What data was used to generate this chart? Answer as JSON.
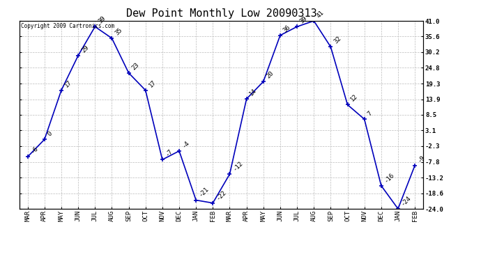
{
  "title": "Dew Point Monthly Low 20090313",
  "months": [
    "MAR",
    "APR",
    "MAY",
    "JUN",
    "JUL",
    "AUG",
    "SEP",
    "OCT",
    "NOV",
    "DEC",
    "JAN",
    "FEB",
    "MAR",
    "APR",
    "MAY",
    "JUN",
    "JUL",
    "AUG",
    "SEP",
    "OCT",
    "NOV",
    "DEC",
    "JAN",
    "FEB"
  ],
  "values": [
    -6,
    0,
    17,
    29,
    39,
    35,
    23,
    17,
    -7,
    -4,
    -21,
    -22,
    -12,
    14,
    20,
    36,
    39,
    41,
    32,
    12,
    7,
    -16,
    -24,
    -9
  ],
  "yticks": [
    -24.0,
    -18.6,
    -13.2,
    -7.8,
    -2.3,
    3.1,
    8.5,
    13.9,
    19.3,
    24.8,
    30.2,
    35.6,
    41.0
  ],
  "line_color": "#0000bb",
  "marker_color": "#0000bb",
  "bg_color": "#ffffff",
  "grid_color": "#bbbbbb",
  "copyright_text": "Copyright 2009 Cartronics.com",
  "title_fontsize": 11,
  "tick_fontsize": 6.5,
  "annot_fontsize": 6.5,
  "copyright_fontsize": 5.5
}
